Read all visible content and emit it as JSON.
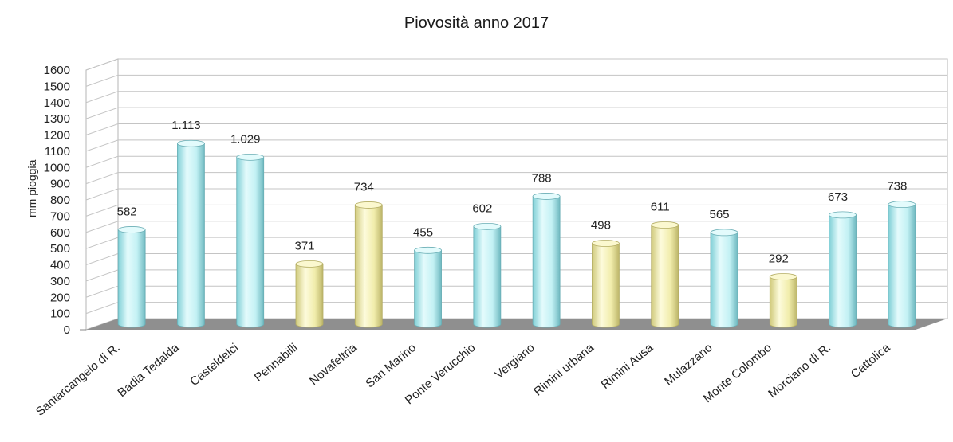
{
  "chart_data": {
    "type": "bar",
    "title": "Piovosità anno 2017",
    "ylabel": "mm pioggia",
    "xlabel": "",
    "ylim": [
      0,
      1600
    ],
    "yticks": [
      0,
      100,
      200,
      300,
      400,
      500,
      600,
      700,
      800,
      900,
      1000,
      1100,
      1200,
      1300,
      1400,
      1500,
      1600
    ],
    "grid": true,
    "categories": [
      "Santarcangelo di R.",
      "Badia Tedalda",
      "Casteldelci",
      "Pennabilli",
      "Novafeltria",
      "San Marino",
      "Ponte Verucchio",
      "Vergiano",
      "Rimini urbana",
      "Rimini Ausa",
      "Mulazzano",
      "Monte Colombo",
      "Morciano di R.",
      "Cattolica"
    ],
    "values": [
      582,
      1113,
      1029,
      371,
      734,
      455,
      602,
      788,
      498,
      611,
      565,
      292,
      673,
      738
    ],
    "value_labels": [
      "582",
      "1.113",
      "1.029",
      "371",
      "734",
      "455",
      "602",
      "788",
      "498",
      "611",
      "565",
      "292",
      "673",
      "738"
    ],
    "bar_colors": [
      "#c9f5f8",
      "#c9f5f8",
      "#c9f5f8",
      "#f6f3b8",
      "#f6f3b8",
      "#c9f5f8",
      "#c9f5f8",
      "#c9f5f8",
      "#f6f3b8",
      "#f6f3b8",
      "#c9f5f8",
      "#f6f3b8",
      "#c9f5f8",
      "#c9f5f8"
    ],
    "colors": {
      "cyan": "#c9f5f8",
      "yellow": "#f6f3b8",
      "floor": "#8f8f8f"
    }
  }
}
